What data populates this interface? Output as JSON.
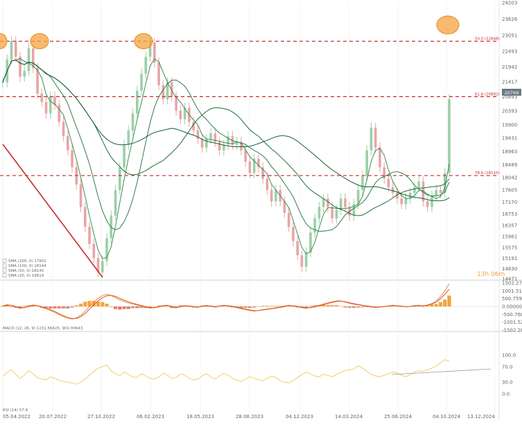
{
  "chart_data": [
    {
      "type": "line",
      "panel": "price",
      "y_ticks": [
        24203,
        23626,
        23051,
        22493,
        21942,
        21417,
        20893,
        20393,
        19900,
        19431,
        18963,
        18489,
        18042,
        17605,
        17170,
        16753,
        16357,
        15961,
        15575,
        15191,
        14830,
        14471
      ],
      "x_ticks": [
        "05.04.2022",
        "20.07.2022",
        "27.10.2022",
        "06.02.2023",
        "18.05.2023",
        "28.08.2023",
        "04.12.2023",
        "14.03.2024",
        "25.06.2024",
        "04.10.2024",
        "13.12.2024"
      ],
      "ylim": [
        14471,
        24203
      ],
      "levels": [
        {
          "label": "50.0 (22848)",
          "value": 22848
        },
        {
          "label": "61.8 (20893)",
          "value": 20893
        },
        {
          "label": "78.6 (18110)",
          "value": 18110
        }
      ],
      "current_price_label": "20769",
      "current_price": 20769,
      "timer_label": "13h 06m",
      "legend": [
        {
          "label": "SMA (200, 0) 17902",
          "color": "#2e7d4f"
        },
        {
          "label": "SMA (100, 0) 18144",
          "color": "#2e7d4f"
        },
        {
          "label": "SMA (50, 0) 18145",
          "color": "#2e7d4f"
        },
        {
          "label": "SMA (20, 0) 18614",
          "color": "#2e7d4f"
        }
      ],
      "highlight_circles": [
        "early-top",
        "april-2022-top",
        "feb-2023-top",
        "latest-spike"
      ],
      "trendline": "red descending line, top-left to Oct-2022 low",
      "series": [
        {
          "values": [
            21400,
            22200,
            22850,
            22300,
            21600,
            21800,
            22600,
            21900,
            21000,
            20700,
            20300,
            20900,
            20600,
            20000,
            19500,
            19000,
            18400,
            17800,
            17000,
            16300,
            15700,
            15200,
            14700,
            15100,
            15900,
            16700,
            17600,
            18400,
            19200,
            19700,
            20300,
            21100,
            21700,
            22300,
            22800,
            22100,
            21300,
            20800,
            21400,
            20900,
            20400,
            20100,
            20500,
            20000,
            19700,
            19400,
            19100,
            19400,
            19600,
            19300,
            19000,
            19200,
            19500,
            19200,
            19300,
            19000,
            18600,
            18200,
            18700,
            18400,
            18000,
            17600,
            17200,
            17600,
            17200,
            16800,
            16300,
            15800,
            15300,
            14900,
            15400,
            16100,
            16600,
            17000,
            17300,
            17000,
            16600,
            16900,
            17300,
            17000,
            16700,
            17100,
            17600,
            18100,
            19000,
            19800,
            19100,
            18400,
            18000,
            17700,
            17500,
            17300,
            17100,
            17300,
            17500,
            17700,
            17900,
            17200,
            17000,
            17400,
            17600,
            17500,
            18200,
            20800
          ]
        }
      ]
    },
    {
      "type": "area",
      "panel": "macd",
      "legend_label": "MACD (12, 26, 9) 1231.56425, 901.00643",
      "y_ticks": [
        "1502.279",
        "1001.519",
        "500.7595",
        "0.00000",
        "-500.760",
        "-1001.52",
        "-1502.28"
      ],
      "ylim": [
        -1502.28,
        1502.279
      ],
      "series": [
        {
          "values": [
            40,
            120,
            60,
            -40,
            -120,
            -60,
            40,
            100,
            60,
            -60,
            -140,
            -260,
            -380,
            -520,
            -650,
            -760,
            -800,
            -720,
            -560,
            -300,
            0,
            280,
            520,
            700,
            780,
            700,
            560,
            420,
            320,
            220,
            160,
            80,
            20,
            -60,
            -100,
            -80,
            0,
            60,
            80,
            -40,
            -90,
            20,
            60,
            30,
            -30,
            -60,
            30,
            70,
            20,
            -40,
            40,
            80,
            40,
            -20,
            -80,
            -140,
            -200,
            -260,
            -300,
            -250,
            -200,
            -160,
            -120,
            -80,
            -40,
            20,
            80,
            40,
            -20,
            -80,
            -120,
            -60,
            20,
            80,
            160,
            240,
            300,
            360,
            360,
            280,
            200,
            140,
            100,
            60,
            20,
            -30,
            -60,
            -40,
            0,
            40,
            80,
            50,
            10,
            -20,
            10,
            60,
            80,
            40,
            100,
            200,
            360,
            640,
            1000,
            1450
          ]
        },
        {
          "values": [
            20,
            80,
            80,
            0,
            -80,
            -80,
            0,
            60,
            60,
            -20,
            -100,
            -200,
            -320,
            -460,
            -590,
            -700,
            -770,
            -760,
            -650,
            -450,
            -180,
            100,
            360,
            560,
            690,
            710,
            640,
            520,
            400,
            300,
            210,
            130,
            60,
            -10,
            -70,
            -80,
            -30,
            30,
            60,
            10,
            -50,
            -20,
            30,
            40,
            0,
            -40,
            0,
            40,
            30,
            -10,
            20,
            60,
            50,
            10,
            -40,
            -100,
            -160,
            -220,
            -270,
            -260,
            -220,
            -180,
            -140,
            -100,
            -60,
            -10,
            50,
            50,
            10,
            -50,
            -90,
            -80,
            -20,
            40,
            110,
            190,
            260,
            320,
            350,
            310,
            240,
            180,
            130,
            80,
            40,
            0,
            -40,
            -40,
            -10,
            20,
            60,
            50,
            20,
            -10,
            0,
            40,
            60,
            50,
            70,
            140,
            280,
            500,
            780,
            1100
          ]
        }
      ]
    },
    {
      "type": "line",
      "panel": "rsi",
      "legend_label": "RSI (14) 57.9",
      "y_ticks": [
        "100.0",
        "70.0",
        "30.0",
        "0.0"
      ],
      "ylim": [
        0,
        100
      ],
      "series": [
        {
          "values": [
            45,
            55,
            62,
            50,
            40,
            48,
            60,
            52,
            42,
            38,
            36,
            44,
            40,
            35,
            32,
            30,
            28,
            25,
            30,
            38,
            48,
            58,
            66,
            70,
            74,
            60,
            52,
            46,
            56,
            50,
            44,
            42,
            52,
            46,
            40,
            38,
            44,
            54,
            48,
            40,
            42,
            52,
            48,
            40,
            36,
            38,
            46,
            52,
            44,
            38,
            46,
            52,
            48,
            40,
            36,
            32,
            38,
            44,
            40,
            36,
            34,
            40,
            46,
            42,
            34,
            30,
            28,
            34,
            42,
            50,
            56,
            52,
            46,
            44,
            50,
            48,
            44,
            50,
            56,
            60,
            62,
            64,
            72,
            66,
            58,
            50,
            46,
            44,
            48,
            52,
            56,
            54,
            48,
            44,
            50,
            56,
            60,
            58,
            62,
            66,
            72,
            80,
            88,
            84
          ]
        }
      ],
      "trendline": "thin grey rising line"
    }
  ]
}
